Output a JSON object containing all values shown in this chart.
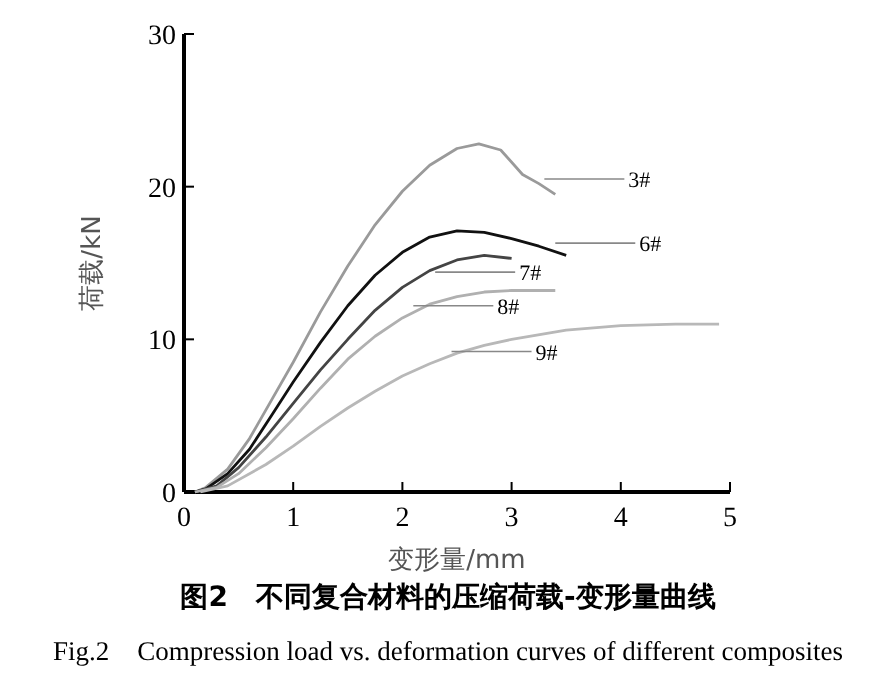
{
  "chart_data": {
    "type": "line",
    "title": "图2　不同复合材料的压缩荷载-变形量曲线",
    "subtitle": "Fig.2　Compression load vs. deformation curves of different composites",
    "xlabel": "变形量/mm",
    "ylabel": "荷载/kN",
    "xlim": [
      0,
      5
    ],
    "xticks": [
      0,
      1,
      2,
      3,
      4,
      5
    ],
    "ylim": [
      0,
      30
    ],
    "yticks": [
      0,
      10,
      20,
      30
    ],
    "grid": false,
    "marker": "none",
    "line_style": "solid",
    "series": [
      {
        "color": "#9a9a9a",
        "x": [
          0.1,
          0.2,
          0.4,
          0.6,
          0.8,
          1,
          1.25,
          1.5,
          1.75,
          2,
          2.25,
          2.5,
          2.7,
          2.9,
          3.1,
          3.25,
          3.4
        ],
        "values": [
          0,
          0.3,
          1.5,
          3.5,
          6,
          8.5,
          11.8,
          14.8,
          17.5,
          19.7,
          21.4,
          22.5,
          22.8,
          22.4,
          20.8,
          20.2,
          19.5
        ]
      },
      {
        "color": "#111111",
        "x": [
          0.1,
          0.2,
          0.4,
          0.6,
          0.8,
          1,
          1.25,
          1.5,
          1.75,
          2,
          2.25,
          2.5,
          2.75,
          3,
          3.25,
          3.5
        ],
        "values": [
          0,
          0.2,
          1.2,
          2.8,
          5,
          7.2,
          9.8,
          12.2,
          14.2,
          15.7,
          16.7,
          17.1,
          17,
          16.6,
          16.1,
          15.5
        ]
      },
      {
        "color": "#444444",
        "x": [
          0.1,
          0.3,
          0.5,
          0.75,
          1,
          1.25,
          1.5,
          1.75,
          2,
          2.25,
          2.5,
          2.75,
          3
        ],
        "values": [
          0,
          0.4,
          1.6,
          3.6,
          5.8,
          8,
          10,
          11.9,
          13.4,
          14.5,
          15.2,
          15.5,
          15.3
        ]
      },
      {
        "color": "#b0b0b0",
        "x": [
          0.1,
          0.3,
          0.5,
          0.75,
          1,
          1.25,
          1.5,
          1.75,
          2,
          2.25,
          2.5,
          2.75,
          3,
          3.4
        ],
        "values": [
          0,
          0.3,
          1.2,
          2.9,
          4.8,
          6.8,
          8.7,
          10.2,
          11.4,
          12.3,
          12.8,
          13.1,
          13.2,
          13.2
        ]
      },
      {
        "color": "#b8b8b8",
        "x": [
          0.15,
          0.4,
          0.75,
          1,
          1.25,
          1.5,
          1.75,
          2,
          2.25,
          2.5,
          2.75,
          3,
          3.5,
          4,
          4.5,
          4.9
        ],
        "values": [
          0,
          0.4,
          1.8,
          3,
          4.3,
          5.5,
          6.6,
          7.6,
          8.4,
          9.1,
          9.6,
          10,
          10.6,
          10.9,
          11,
          11
        ]
      }
    ],
    "annotations": [
      {
        "text": "3#",
        "x": 3.3,
        "y": 20.5
      },
      {
        "text": "6#",
        "x": 3.4,
        "y": 16.3
      },
      {
        "text": "7#",
        "x": 2.3,
        "y": 14.4
      },
      {
        "text": "8#",
        "x": 2.1,
        "y": 12.2
      },
      {
        "text": "9#",
        "x": 2.45,
        "y": 9.2
      }
    ]
  }
}
